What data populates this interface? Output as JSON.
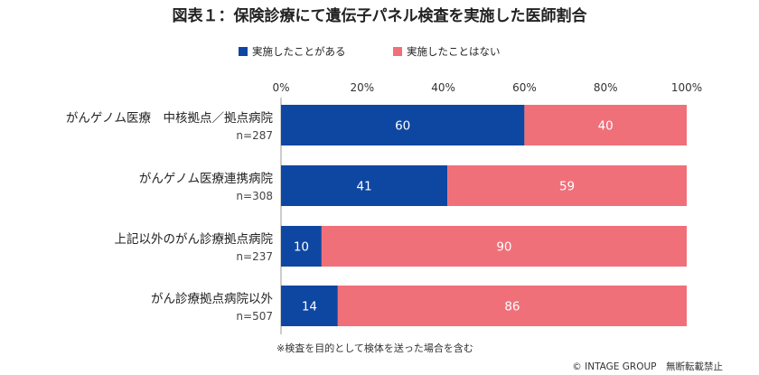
{
  "chart_data": {
    "type": "bar",
    "orientation": "horizontal",
    "stacked": true,
    "title": "図表１：保険診療にて遺伝子パネル検査を実施した医師割合",
    "categories": [
      "がんゲノム医療　中核拠点／拠点病院",
      "がんゲノム医療連携病院",
      "上記以外のがん診療拠点病院",
      "がん診療拠点病院以外"
    ],
    "sample_sizes": [
      "n=287",
      "n=308",
      "n=237",
      "n=507"
    ],
    "series": [
      {
        "name": "実施したことがある",
        "values": [
          60,
          41,
          10,
          14
        ],
        "color": "#0e47a1"
      },
      {
        "name": "実施したことはない",
        "values": [
          40,
          59,
          90,
          86
        ],
        "color": "#f07079"
      }
    ],
    "xlim": [
      0,
      100
    ],
    "x_ticks": [
      "0%",
      "20%",
      "40%",
      "60%",
      "80%",
      "100%"
    ],
    "grid": false,
    "legend_position": "top-center",
    "footnote": "※検査を目的として検体を送った場合を含む",
    "copyright": "© INTAGE GROUP　無断転載禁止"
  }
}
